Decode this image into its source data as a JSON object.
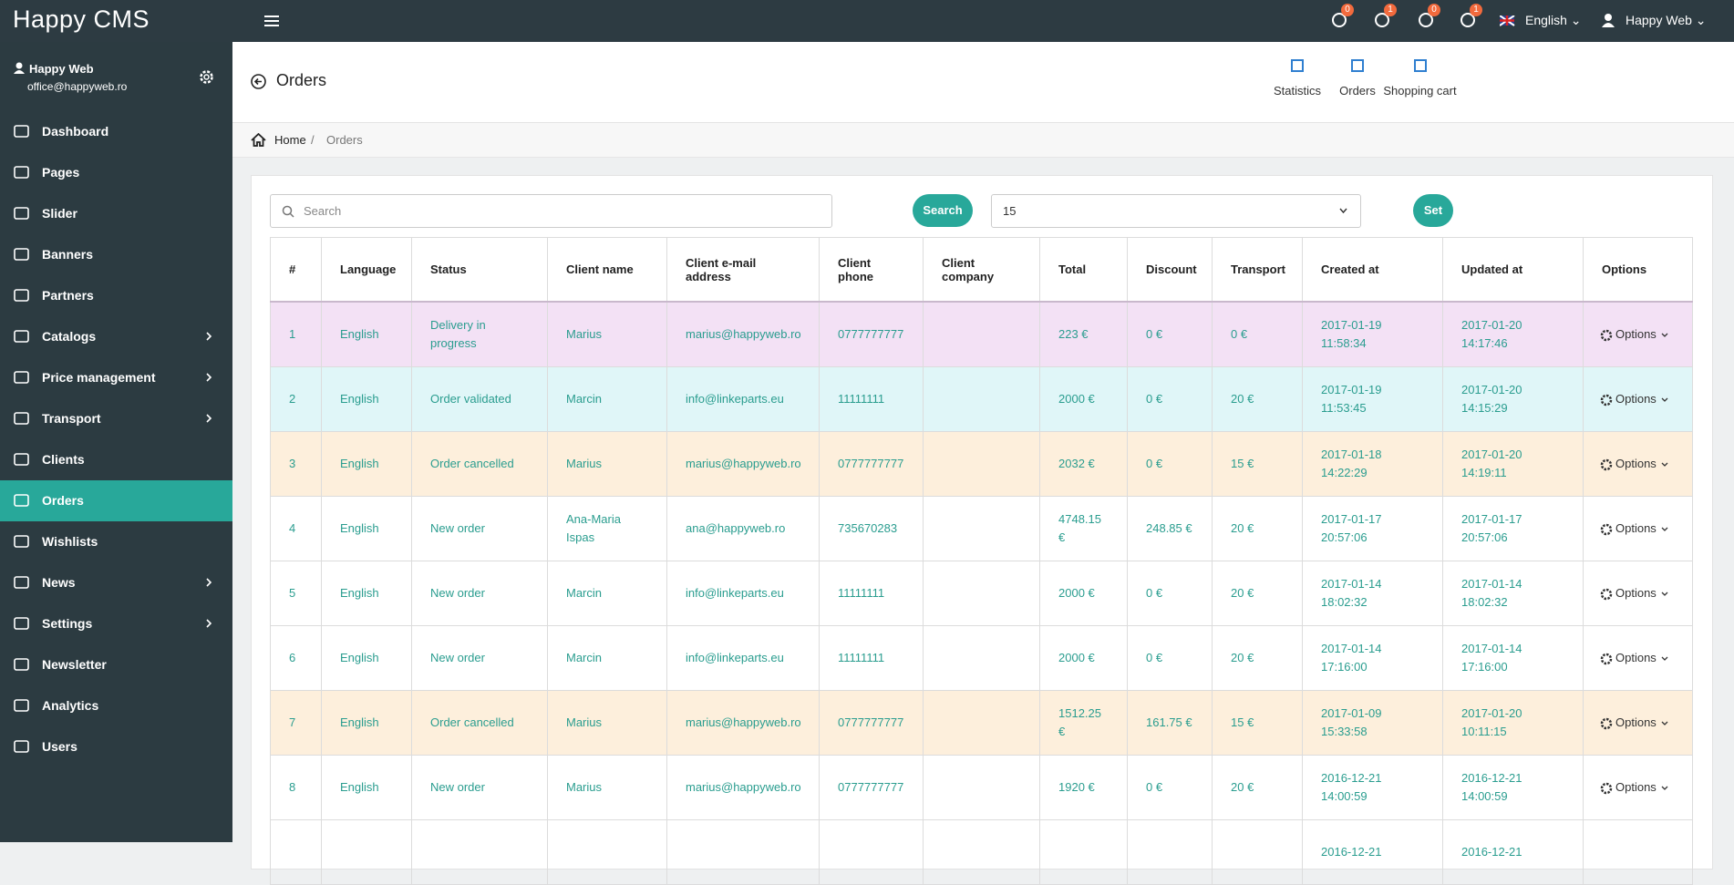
{
  "topbar": {
    "logo": "Happy CMS",
    "badges": [
      "0",
      "1",
      "0",
      "1"
    ],
    "language": "English",
    "user": "Happy Web"
  },
  "sidebar": {
    "user_name": "Happy Web",
    "user_email": "office@happyweb.ro",
    "menu": [
      {
        "label": "Dashboard"
      },
      {
        "label": "Pages"
      },
      {
        "label": "Slider"
      },
      {
        "label": "Banners"
      },
      {
        "label": "Partners"
      },
      {
        "label": "Catalogs",
        "submenu": true
      },
      {
        "label": "Price management",
        "submenu": true
      },
      {
        "label": "Transport",
        "submenu": true
      },
      {
        "label": "Clients"
      },
      {
        "label": "Orders",
        "active": true
      },
      {
        "label": "Wishlists"
      },
      {
        "label": "News",
        "submenu": true
      },
      {
        "label": "Settings",
        "submenu": true
      },
      {
        "label": "Newsletter"
      },
      {
        "label": "Analytics"
      },
      {
        "label": "Users"
      }
    ]
  },
  "page_header": {
    "title": "Orders",
    "actions": [
      "Statistics",
      "Orders",
      "Shopping cart"
    ]
  },
  "breadcrumb": [
    "Home",
    "Orders"
  ],
  "toolbar": {
    "search_placeholder": "Search",
    "search_button": "Search",
    "per_page": "15",
    "set_button": "Set"
  },
  "table": {
    "columns": [
      "#",
      "Language",
      "Status",
      "Client name",
      "Client e-mail address",
      "Client phone",
      "Client company",
      "Total",
      "Discount",
      "Transport",
      "Created at",
      "Updated at",
      "Options"
    ],
    "rows": [
      [
        "1",
        "English",
        "Delivery in progress",
        "Marius",
        "marius@happyweb.ro",
        "0777777777",
        null,
        "223 €",
        "0 €",
        "0 €",
        "2017-01-19\n11:58:34",
        "2017-01-20\n14:17:46",
        "Options"
      ],
      [
        "2",
        "English",
        "Order validated",
        "Marcin",
        "info@linkeparts.eu",
        "11111111",
        null,
        "2000 €",
        "0 €",
        "20 €",
        "2017-01-19\n11:53:45",
        "2017-01-20\n14:15:29",
        "Options"
      ],
      [
        "3",
        "English",
        "Order cancelled",
        "Marius",
        "marius@happyweb.ro",
        "0777777777",
        null,
        "2032 €",
        "0 €",
        "15 €",
        "2017-01-18\n14:22:29",
        "2017-01-20\n14:19:11",
        "Options"
      ],
      [
        "4",
        "English",
        "New order",
        "Ana-Maria Ispas",
        "ana@happyweb.ro",
        "735670283",
        null,
        "4748.15 €",
        "248.85 €",
        "20 €",
        "2017-01-17\n20:57:06",
        "2017-01-17\n20:57:06",
        "Options"
      ],
      [
        "5",
        "English",
        "New order",
        "Marcin",
        "info@linkeparts.eu",
        "11111111",
        null,
        "2000 €",
        "0 €",
        "20 €",
        "2017-01-14\n18:02:32",
        "2017-01-14\n18:02:32",
        "Options"
      ],
      [
        "6",
        "English",
        "New order",
        "Marcin",
        "info@linkeparts.eu",
        "11111111",
        null,
        "2000 €",
        "0 €",
        "20 €",
        "2017-01-14\n17:16:00",
        "2017-01-14\n17:16:00",
        "Options"
      ],
      [
        "7",
        "English",
        "Order cancelled",
        "Marius",
        "marius@happyweb.ro",
        "0777777777",
        null,
        "1512.25 €",
        "161.75 €",
        "15 €",
        "2017-01-09\n15:33:58",
        "2017-01-20\n10:11:15",
        "Options"
      ],
      [
        "8",
        "English",
        "New order",
        "Marius",
        "marius@happyweb.ro",
        "0777777777",
        null,
        "1920 €",
        "0 €",
        "20 €",
        "2016-12-21\n14:00:59",
        "2016-12-21\n14:00:59",
        "Options"
      ],
      [
        null,
        null,
        null,
        null,
        null,
        null,
        null,
        null,
        null,
        null,
        "2016-12-21",
        "2016-12-21",
        null
      ]
    ]
  }
}
